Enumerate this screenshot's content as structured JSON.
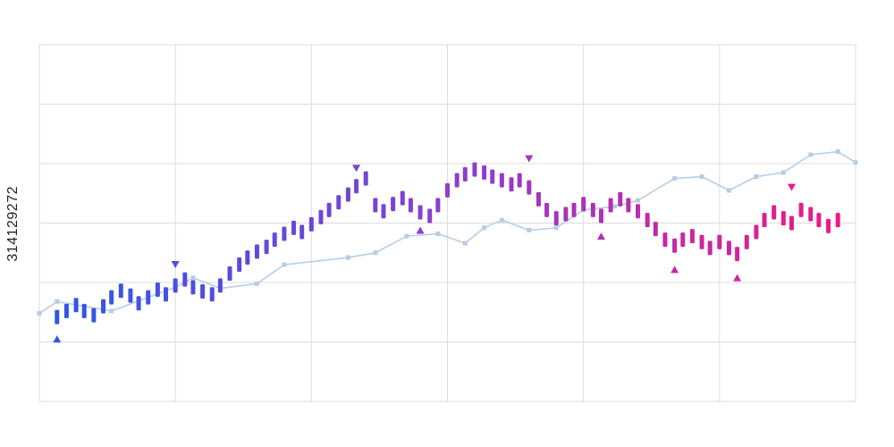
{
  "stock_id": "314129272",
  "colors": {
    "grid": "#dddddd",
    "frame": "#dddddd",
    "line": "#b7cde3",
    "line_marker": "#b7cde3",
    "candle_start": "#2f57e6",
    "candle_mid": "#8a3fd0",
    "candle_end": "#ec1a86"
  },
  "chart_data": {
    "type": "line",
    "title": "",
    "xlabel": "",
    "ylabel": "",
    "grid": true,
    "xlim": [
      0,
      6
    ],
    "ylim": [
      0,
      6
    ],
    "line_series": {
      "x": [
        0,
        0.13,
        0.53,
        1.0,
        1.13,
        1.33,
        1.6,
        1.8,
        2.27,
        2.47,
        2.7,
        2.93,
        3.13,
        3.27,
        3.4,
        3.6,
        3.8,
        4.0,
        4.23,
        4.4,
        4.67,
        4.87,
        5.07,
        5.27,
        5.47,
        5.67,
        5.87,
        6.0
      ],
      "y": [
        1.48,
        1.68,
        1.52,
        1.92,
        2.08,
        1.9,
        1.98,
        2.3,
        2.42,
        2.5,
        2.78,
        2.82,
        2.66,
        2.92,
        3.05,
        2.88,
        2.92,
        3.22,
        3.28,
        3.38,
        3.75,
        3.78,
        3.55,
        3.78,
        3.85,
        4.15,
        4.2,
        4.02
      ]
    },
    "candles": {
      "x": [
        0.13,
        0.2,
        0.27,
        0.33,
        0.4,
        0.47,
        0.53,
        0.6,
        0.67,
        0.73,
        0.8,
        0.87,
        0.93,
        1.0,
        1.07,
        1.13,
        1.2,
        1.27,
        1.33,
        1.4,
        1.47,
        1.53,
        1.6,
        1.67,
        1.73,
        1.8,
        1.87,
        1.93,
        2.0,
        2.07,
        2.13,
        2.2,
        2.27,
        2.33,
        2.4,
        2.47,
        2.53,
        2.6,
        2.67,
        2.73,
        2.8,
        2.87,
        2.93,
        3.0,
        3.07,
        3.13,
        3.2,
        3.27,
        3.33,
        3.4,
        3.47,
        3.53,
        3.6,
        3.67,
        3.73,
        3.8,
        3.87,
        3.93,
        4.0,
        4.07,
        4.13,
        4.2,
        4.27,
        4.33,
        4.4,
        4.47,
        4.53,
        4.6,
        4.67,
        4.73,
        4.8,
        4.87,
        4.93,
        5.0,
        5.07,
        5.13,
        5.2,
        5.27,
        5.33,
        5.4,
        5.47,
        5.53,
        5.6,
        5.67,
        5.73,
        5.8,
        5.87
      ],
      "y": [
        1.42,
        1.52,
        1.62,
        1.52,
        1.45,
        1.6,
        1.75,
        1.86,
        1.78,
        1.65,
        1.75,
        1.88,
        1.8,
        1.95,
        2.05,
        1.92,
        1.85,
        1.8,
        1.95,
        2.15,
        2.3,
        2.42,
        2.52,
        2.6,
        2.72,
        2.82,
        2.92,
        2.85,
        2.98,
        3.1,
        3.22,
        3.35,
        3.48,
        3.62,
        3.75,
        3.3,
        3.2,
        3.32,
        3.42,
        3.3,
        3.18,
        3.12,
        3.3,
        3.55,
        3.72,
        3.82,
        3.9,
        3.85,
        3.78,
        3.72,
        3.65,
        3.72,
        3.6,
        3.4,
        3.22,
        3.08,
        3.15,
        3.22,
        3.32,
        3.22,
        3.12,
        3.3,
        3.4,
        3.3,
        3.2,
        3.05,
        2.9,
        2.72,
        2.62,
        2.72,
        2.78,
        2.68,
        2.58,
        2.68,
        2.58,
        2.48,
        2.68,
        2.85,
        3.05,
        3.18,
        3.08,
        3.0,
        3.22,
        3.15,
        3.05,
        2.95,
        3.05
      ]
    },
    "markers": [
      {
        "x": 0.13,
        "y": 1.05,
        "shape": "up"
      },
      {
        "x": 1.0,
        "y": 2.3,
        "shape": "down"
      },
      {
        "x": 2.33,
        "y": 3.92,
        "shape": "down"
      },
      {
        "x": 2.8,
        "y": 2.88,
        "shape": "up"
      },
      {
        "x": 3.6,
        "y": 4.08,
        "shape": "down"
      },
      {
        "x": 4.13,
        "y": 2.78,
        "shape": "up"
      },
      {
        "x": 4.67,
        "y": 2.22,
        "shape": "up"
      },
      {
        "x": 5.13,
        "y": 2.08,
        "shape": "up"
      },
      {
        "x": 5.53,
        "y": 3.6,
        "shape": "down"
      }
    ]
  }
}
